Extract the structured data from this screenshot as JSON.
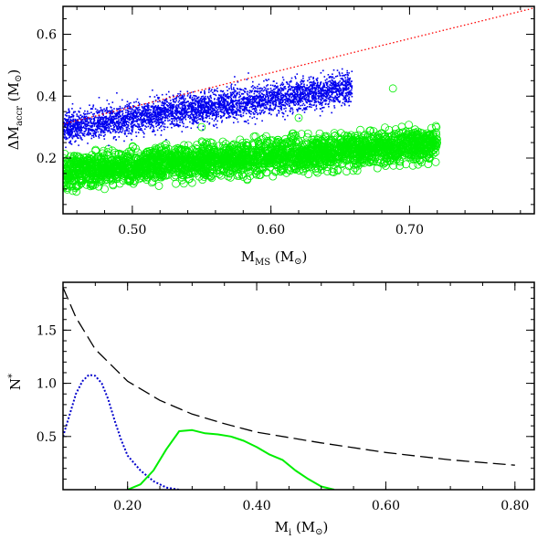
{
  "chart_data": [
    {
      "type": "scatter",
      "xlabel": "M_MS (M_sun)",
      "xlabel_parts": {
        "main": "M",
        "sub": "MS",
        "unit": "(M",
        "unit_close": ")"
      },
      "ylabel": "ΔM_accr (M_sun)",
      "ylabel_parts": {
        "main": "ΔM",
        "sub": "accr",
        "unit": "(M",
        "unit_close": ")"
      },
      "xlim": [
        0.45,
        0.79
      ],
      "ylim": [
        0.02,
        0.69
      ],
      "xticks": [
        0.5,
        0.6,
        0.7
      ],
      "xtick_labels": [
        "0.50",
        "0.60",
        "0.70"
      ],
      "yticks": [
        0.2,
        0.4,
        0.6
      ],
      "ytick_labels": [
        "0.2",
        "0.4",
        "0.6"
      ],
      "grid": false,
      "colors": {
        "blue": "#0000ee",
        "green": "#00ee00",
        "red_line": "#ff0000"
      },
      "series": [
        {
          "style": "blue-dots",
          "x_range": [
            0.45,
            0.658
          ],
          "center_at_xmin": 0.3,
          "center_at_xmax": 0.43,
          "band_halfwidth": 0.045
        },
        {
          "style": "green-circles",
          "x_range": [
            0.45,
            0.72
          ],
          "center_at_xmin": 0.155,
          "center_at_xmax": 0.245,
          "band_halfwidth": 0.05
        },
        {
          "style": "red-dotted-line",
          "x": [
            0.45,
            0.79
          ],
          "y": [
            0.31,
            0.685
          ]
        }
      ]
    },
    {
      "type": "line",
      "xlabel": "M_i (M_sun)",
      "xlabel_parts": {
        "main": "M",
        "sub": "i",
        "unit": "(M",
        "unit_close": ")"
      },
      "ylabel": "N*",
      "ylabel_parts": {
        "main": "N",
        "sup": "*"
      },
      "xlim": [
        0.1,
        0.83
      ],
      "ylim": [
        0.0,
        1.95
      ],
      "xticks": [
        0.2,
        0.4,
        0.6,
        0.8
      ],
      "xtick_labels": [
        "0.20",
        "0.40",
        "0.60",
        "0.80"
      ],
      "yticks": [
        0.5,
        1.0,
        1.5
      ],
      "ytick_labels": [
        "0.5",
        "1.0",
        "1.5"
      ],
      "grid": false,
      "series": [
        {
          "style": "black-dashed",
          "x": [
            0.1,
            0.12,
            0.15,
            0.2,
            0.25,
            0.3,
            0.35,
            0.4,
            0.5,
            0.6,
            0.7,
            0.8
          ],
          "y": [
            1.9,
            1.62,
            1.32,
            1.02,
            0.84,
            0.71,
            0.62,
            0.54,
            0.44,
            0.35,
            0.28,
            0.23
          ]
        },
        {
          "style": "blue-dotted",
          "x": [
            0.1,
            0.11,
            0.12,
            0.13,
            0.14,
            0.15,
            0.16,
            0.17,
            0.18,
            0.19,
            0.2,
            0.22,
            0.24,
            0.26,
            0.28
          ],
          "y": [
            0.5,
            0.7,
            0.9,
            1.02,
            1.08,
            1.07,
            1.0,
            0.85,
            0.65,
            0.47,
            0.32,
            0.18,
            0.08,
            0.02,
            0.0
          ]
        },
        {
          "style": "green-solid",
          "x": [
            0.2,
            0.22,
            0.24,
            0.26,
            0.28,
            0.3,
            0.32,
            0.34,
            0.36,
            0.38,
            0.4,
            0.42,
            0.44,
            0.46,
            0.48,
            0.5,
            0.52
          ],
          "y": [
            0.0,
            0.05,
            0.18,
            0.38,
            0.55,
            0.56,
            0.53,
            0.52,
            0.5,
            0.46,
            0.4,
            0.33,
            0.28,
            0.18,
            0.1,
            0.03,
            0.0
          ]
        }
      ]
    }
  ]
}
